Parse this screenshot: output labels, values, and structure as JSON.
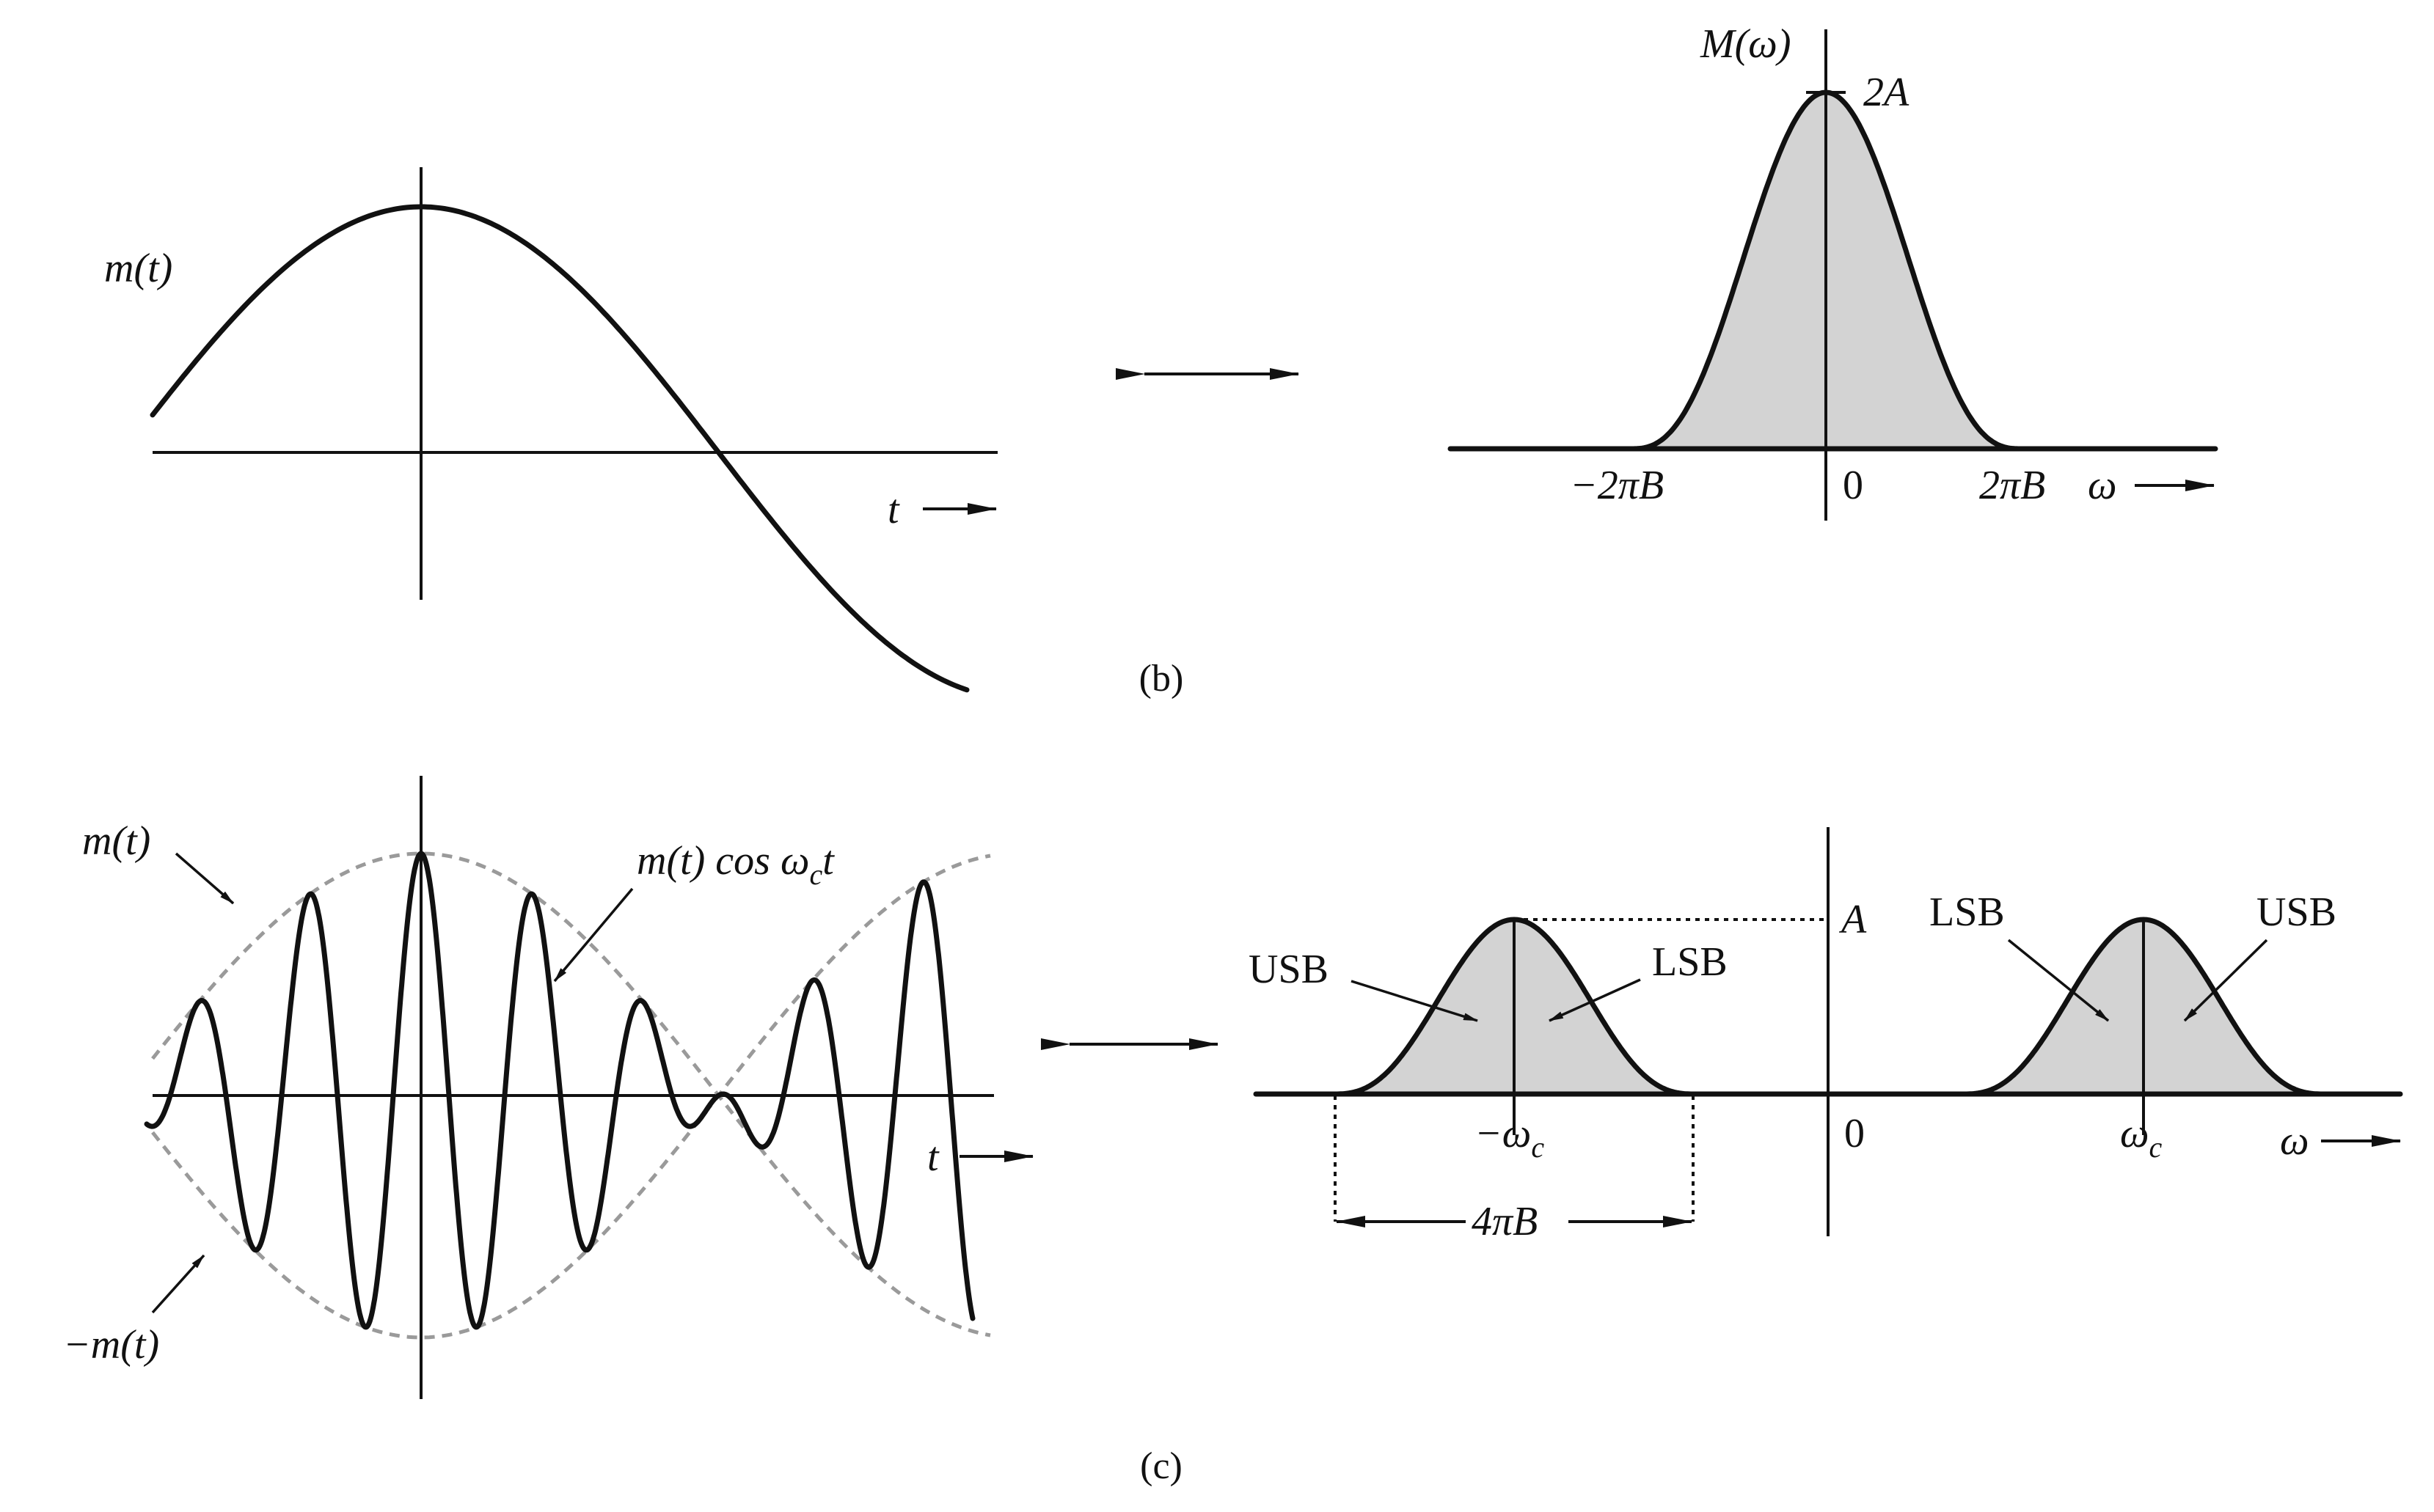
{
  "panel_b": {
    "time": {
      "signal_label": "m(t)",
      "t_axis_label": "t"
    },
    "spectrum": {
      "title": "M(ω)",
      "peak_label": "2A",
      "tick_left": "−2πB",
      "tick_zero": "0",
      "tick_right": "2πB",
      "w_axis_label": "ω"
    },
    "caption": "(b)"
  },
  "panel_c": {
    "time": {
      "envelope_pos_label": "m(t)",
      "envelope_neg_label": "−m(t)",
      "modulated_label_pre": "m(t) cos ω",
      "modulated_label_sub": "c",
      "modulated_label_post": "t",
      "t_axis_label": "t"
    },
    "spectrum": {
      "peak_label": "A",
      "left_usb": "USB",
      "left_lsb": "LSB",
      "right_lsb": "LSB",
      "right_usb": "USB",
      "tick_neg_wc_pre": "−ω",
      "tick_neg_wc_sub": "c",
      "tick_zero": "0",
      "tick_wc_pre": "ω",
      "tick_wc_sub": "c",
      "w_axis_label": "ω",
      "bandwidth_label": "4πB"
    },
    "caption": "(c)"
  }
}
